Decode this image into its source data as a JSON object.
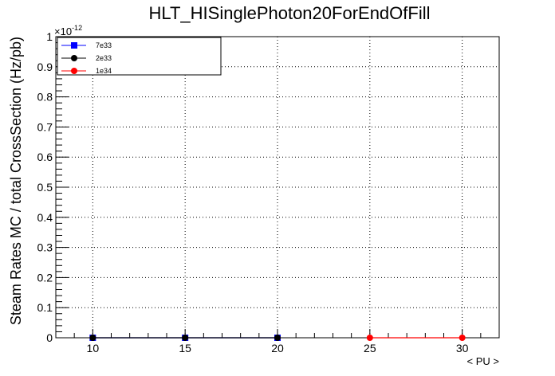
{
  "chart_data": {
    "type": "line",
    "title": "HLT_HISinglePhoton20ForEndOfFill",
    "xlabel": "< PU >",
    "ylabel": "Steam Rates MC / total CrossSection (Hz/pb)",
    "y_exponent_label": "×10",
    "y_exponent_power": "-12",
    "xlim": [
      8,
      32
    ],
    "ylim": [
      0,
      1
    ],
    "x_ticks": [
      10,
      15,
      20,
      25,
      30
    ],
    "x_tick_labels": [
      "10",
      "15",
      "20",
      "25",
      "30"
    ],
    "y_ticks": [
      0,
      0.1,
      0.2,
      0.3,
      0.4,
      0.5,
      0.6,
      0.7,
      0.8,
      0.9,
      1
    ],
    "y_tick_labels": [
      "0",
      "0.1",
      "0.2",
      "0.3",
      "0.4",
      "0.5",
      "0.6",
      "0.7",
      "0.8",
      "0.9",
      "1"
    ],
    "grid": true,
    "legend_position": "top-left",
    "series": [
      {
        "name": "7e33",
        "color": "#0000ff",
        "marker": "square",
        "x": [
          10,
          15,
          20
        ],
        "y": [
          0,
          0,
          0
        ]
      },
      {
        "name": "2e33",
        "color": "#000000",
        "marker": "circle",
        "x": [
          10,
          15,
          20
        ],
        "y": [
          0,
          0,
          0
        ]
      },
      {
        "name": "1e34",
        "color": "#ff0000",
        "marker": "circle",
        "x": [
          25,
          30
        ],
        "y": [
          0,
          0
        ]
      }
    ]
  }
}
